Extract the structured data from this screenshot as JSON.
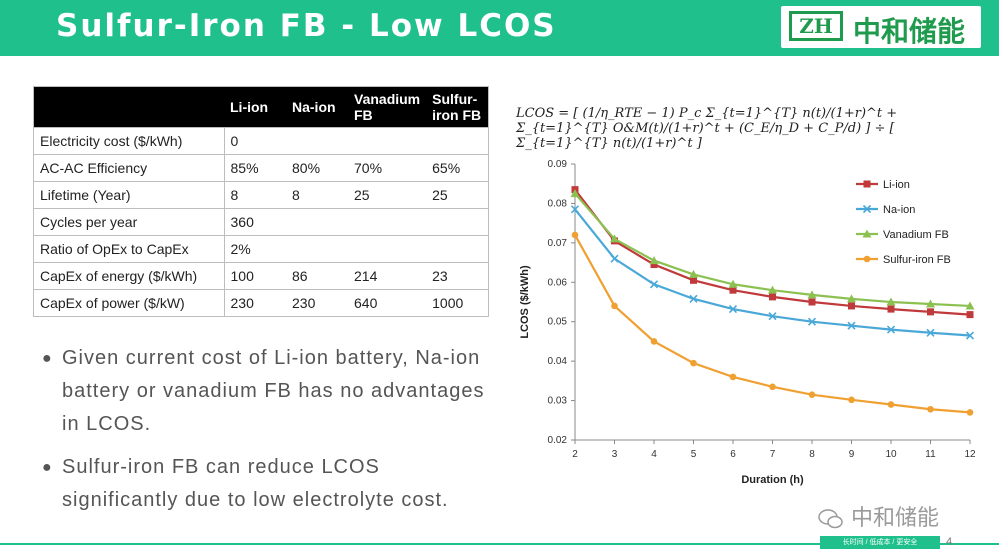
{
  "header": {
    "title": "Sulfur-Iron FB - Low LCOS",
    "logo_mark": "ZH",
    "logo_text": "中和储能"
  },
  "table": {
    "headers": [
      "",
      "Li-ion",
      "Na-ion",
      "Vanadium FB",
      "Sulfur-iron FB"
    ],
    "rows": [
      [
        "Electricity cost ($/kWh)",
        "0",
        "",
        "",
        ""
      ],
      [
        "AC-AC Efficiency",
        "85%",
        "80%",
        "70%",
        "65%"
      ],
      [
        "Lifetime (Year)",
        "8",
        "8",
        "25",
        "25"
      ],
      [
        "Cycles per year",
        "360",
        "",
        "",
        ""
      ],
      [
        "Ratio of OpEx to CapEx",
        "2%",
        "",
        "",
        ""
      ],
      [
        "CapEx of energy ($/kWh)",
        "100",
        "86",
        "214",
        "23"
      ],
      [
        "CapEx of power ($/kW)",
        "230",
        "230",
        "640",
        "1000"
      ]
    ]
  },
  "bullets": [
    "Given current cost of Li-ion battery, Na-ion battery or vanadium FB has no advantages in LCOS.",
    "Sulfur-iron FB can reduce LCOS significantly due to low electrolyte cost."
  ],
  "formula": {
    "text": "LCOS = [ (1/η_RTE − 1) P_c Σ_{t=1}^{T} n(t)/(1+r)^t + Σ_{t=1}^{T} O&M(t)/(1+r)^t + (C_E/η_D + C_P/d) ] ÷ [ Σ_{t=1}^{T} n(t)/(1+r)^t ]"
  },
  "chart_data": {
    "type": "line",
    "xlabel": "Duration (h)",
    "ylabel": "LCOS ($/kWh)",
    "x": [
      2,
      3,
      4,
      5,
      6,
      7,
      8,
      9,
      10,
      11,
      12
    ],
    "xlim": [
      2,
      12
    ],
    "ylim": [
      0.02,
      0.09
    ],
    "yticks": [
      "0.02",
      "0.03",
      "0.04",
      "0.05",
      "0.06",
      "0.07",
      "0.08",
      "0.09"
    ],
    "grid": "off",
    "legend_position": "top-right",
    "series": [
      {
        "name": "Li-ion",
        "color": "#c0393b",
        "marker": "square",
        "values": [
          0.0835,
          0.0705,
          0.0645,
          0.0605,
          0.058,
          0.0563,
          0.055,
          0.054,
          0.0532,
          0.0525,
          0.0518
        ]
      },
      {
        "name": "Na-ion",
        "color": "#4aa8d8",
        "marker": "x",
        "values": [
          0.0785,
          0.066,
          0.0595,
          0.0558,
          0.0532,
          0.0514,
          0.05,
          0.049,
          0.048,
          0.0472,
          0.0465
        ]
      },
      {
        "name": "Vanadium FB",
        "color": "#8cc152",
        "marker": "triangle",
        "values": [
          0.0825,
          0.071,
          0.0655,
          0.062,
          0.0595,
          0.058,
          0.0568,
          0.0558,
          0.055,
          0.0545,
          0.054
        ]
      },
      {
        "name": "Sulfur-iron FB",
        "color": "#f0a030",
        "marker": "circle",
        "values": [
          0.072,
          0.054,
          0.045,
          0.0395,
          0.036,
          0.0335,
          0.0315,
          0.0302,
          0.029,
          0.0278,
          0.027
        ]
      }
    ]
  },
  "watermark": "中和储能",
  "footer": {
    "tag": "长时间 / 低成本 / 更安全",
    "page_number": "4"
  },
  "colors": {
    "accent": "#20c08d",
    "logo_green": "#1f9b4d"
  }
}
